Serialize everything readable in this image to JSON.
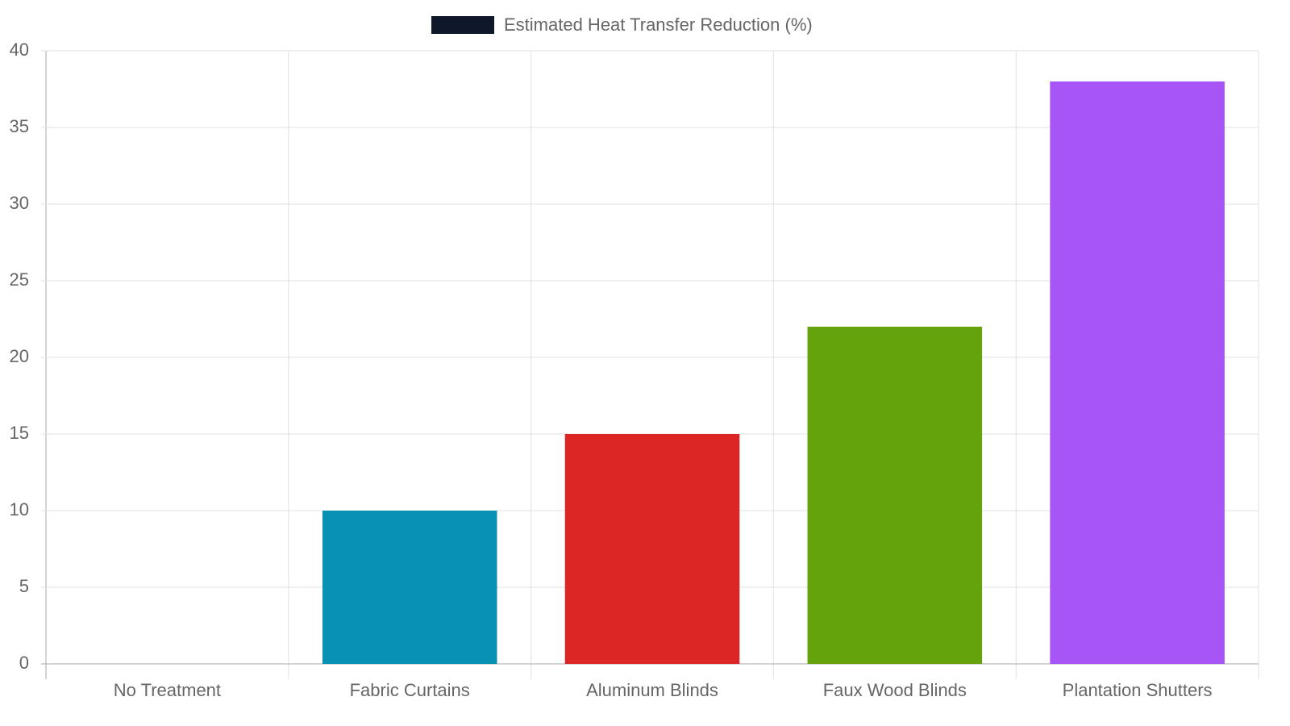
{
  "chart_data": {
    "type": "bar",
    "categories": [
      "No Treatment",
      "Fabric Curtains",
      "Aluminum Blinds",
      "Faux Wood Blinds",
      "Plantation Shutters"
    ],
    "series": [
      {
        "name": "Estimated Heat Transfer Reduction (%)",
        "color": "#0f172a",
        "values": [
          0,
          10,
          15,
          22,
          38
        ],
        "colors": [
          null,
          "#0891b2",
          "#dc2626",
          "#65a30d",
          "#a855f7"
        ]
      }
    ],
    "ylim": [
      0,
      40
    ],
    "yticks": [
      0,
      5,
      10,
      15,
      20,
      25,
      30,
      35,
      40
    ],
    "grid": true,
    "legend": "top"
  }
}
